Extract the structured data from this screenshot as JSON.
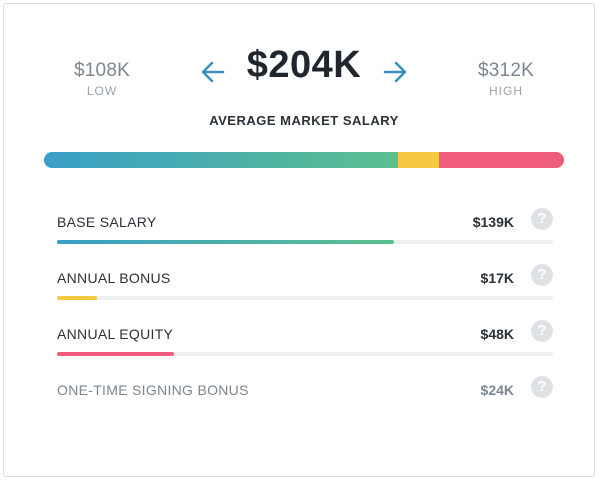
{
  "header": {
    "low": {
      "value": "$108K",
      "label": "LOW"
    },
    "high": {
      "value": "$312K",
      "label": "HIGH"
    },
    "average": {
      "value": "$204K",
      "label": "AVERAGE MARKET SALARY"
    }
  },
  "colors": {
    "base": "#3a9fc7",
    "base_end": "#5bbf8e",
    "bonus": "#f6c945",
    "equity": "#ef5c7c",
    "help_icon": "#dfe2e5"
  },
  "total_bar": {
    "segments": [
      {
        "name": "base",
        "fraction": 0.68
      },
      {
        "name": "bonus",
        "fraction": 0.08
      },
      {
        "name": "equity",
        "fraction": 0.24
      }
    ]
  },
  "breakdown": [
    {
      "label": "BASE SALARY",
      "value": "$139K",
      "fill_fraction": 0.68,
      "icon": "help-icon"
    },
    {
      "label": "ANNUAL BONUS",
      "value": "$17K",
      "fill_fraction": 0.08,
      "icon": "help-icon"
    },
    {
      "label": "ANNUAL EQUITY",
      "value": "$48K",
      "fill_fraction": 0.235,
      "icon": "help-icon"
    },
    {
      "label": "ONE-TIME SIGNING BONUS",
      "value": "$24K",
      "fill_fraction": 0,
      "icon": "help-icon"
    }
  ],
  "help_glyph": "?"
}
